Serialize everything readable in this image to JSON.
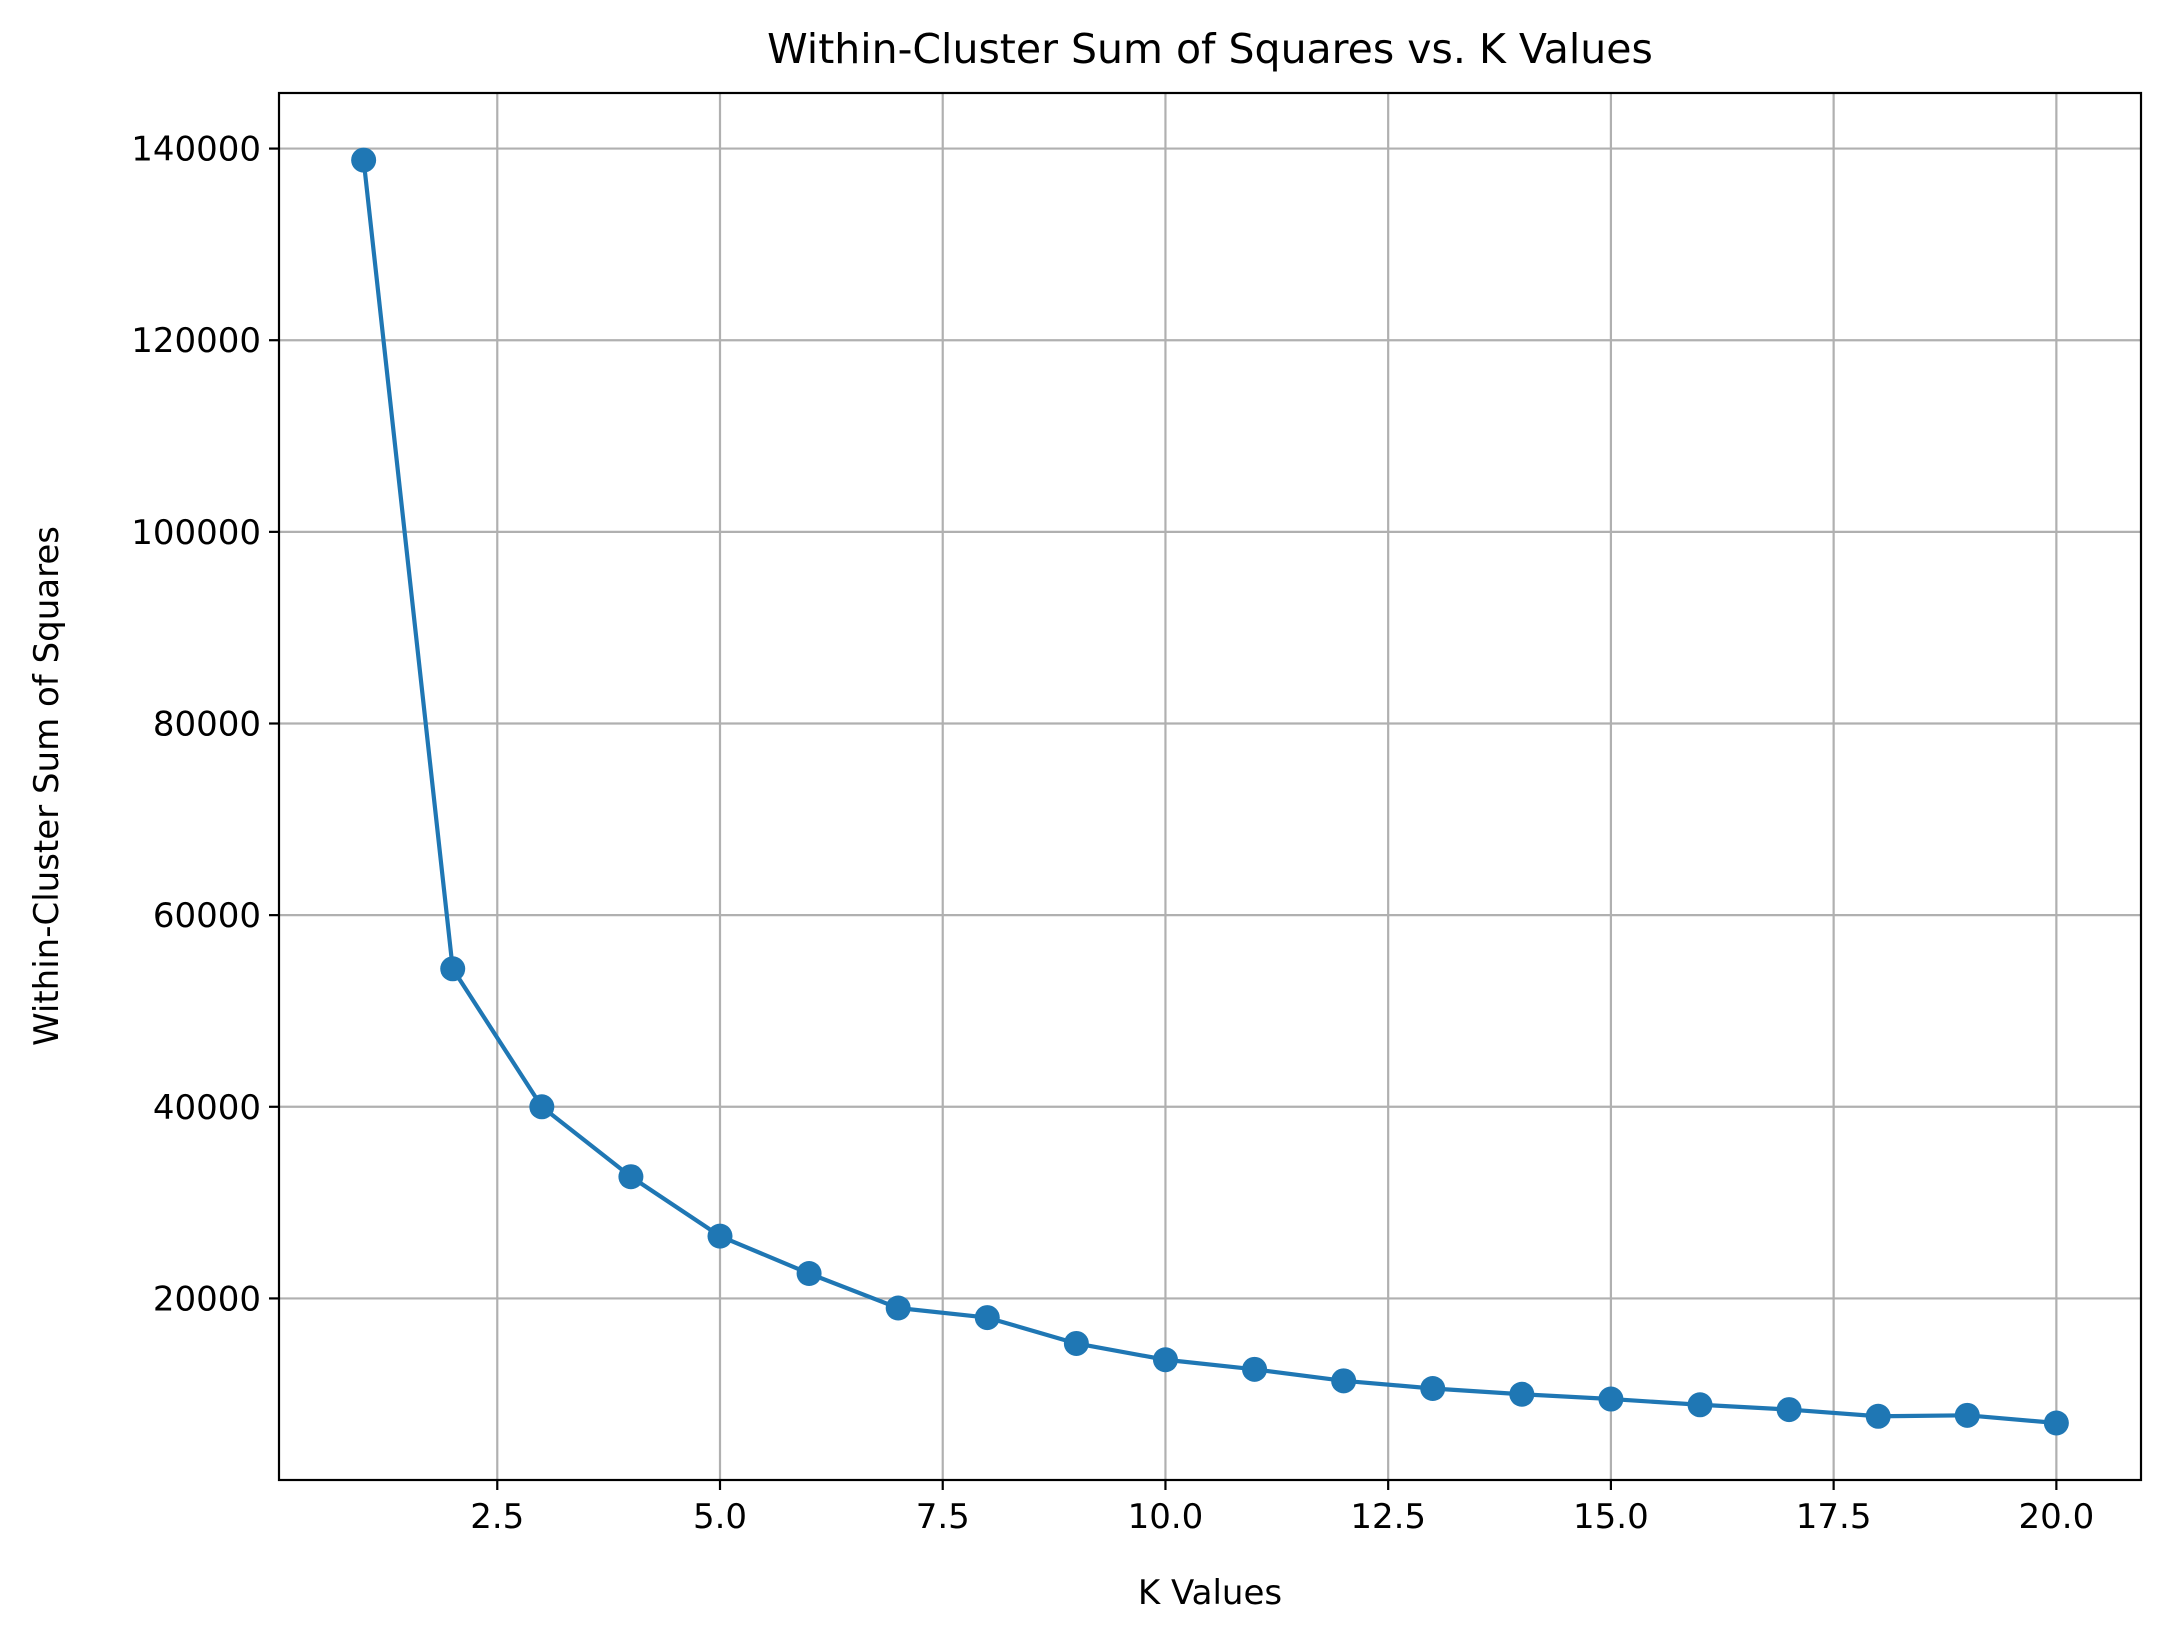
{
  "chart_data": {
    "type": "line",
    "title": "Within-Cluster Sum of Squares vs. K Values",
    "xlabel": "K Values",
    "ylabel": "Within-Cluster Sum of Squares",
    "xlim": [
      0.05,
      20.95
    ],
    "ylim": [
      1050,
      145800
    ],
    "xticks": [
      2.5,
      5.0,
      7.5,
      10.0,
      12.5,
      15.0,
      17.5,
      20.0
    ],
    "xtick_labels": [
      "2.5",
      "5.0",
      "7.5",
      "10.0",
      "12.5",
      "15.0",
      "17.5",
      "20.0"
    ],
    "yticks": [
      20000,
      40000,
      60000,
      80000,
      100000,
      120000,
      140000
    ],
    "ytick_labels": [
      "20000",
      "40000",
      "60000",
      "80000",
      "100000",
      "120000",
      "140000"
    ],
    "grid": true,
    "marker": "circle",
    "series": [
      {
        "x": [
          1,
          2,
          3,
          4,
          5,
          6,
          7,
          8,
          9,
          10,
          11,
          12,
          13,
          14,
          15,
          16,
          17,
          18,
          19,
          20
        ],
        "values": [
          138800,
          54400,
          40000,
          32700,
          26500,
          22600,
          19000,
          18000,
          15300,
          13600,
          12600,
          11400,
          10600,
          10000,
          9500,
          8900,
          8400,
          7700,
          7800,
          7000
        ],
        "color": "#1f77b4"
      }
    ]
  }
}
